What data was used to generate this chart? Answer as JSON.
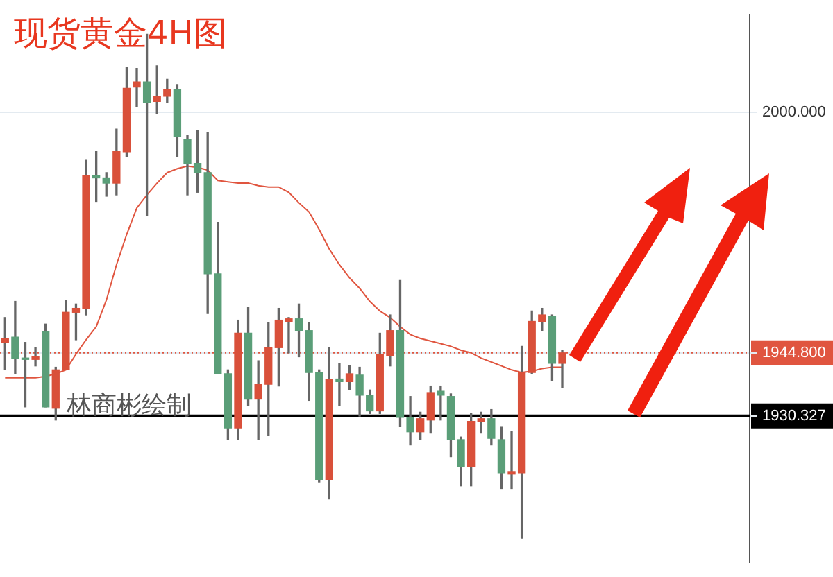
{
  "chart_data": {
    "type": "candlestick",
    "title": "现货黄金4H图",
    "annotations": [
      "林商彬绘制"
    ],
    "categories": [
      null,
      null,
      null,
      null,
      null,
      null,
      null,
      null,
      null,
      null,
      null,
      null,
      null,
      null,
      null,
      null,
      null,
      null,
      null,
      null,
      null,
      null,
      null,
      null,
      null,
      null,
      null,
      null,
      null,
      null,
      null,
      null,
      null,
      null,
      null,
      null,
      null,
      null,
      null,
      null,
      null,
      null,
      null,
      null,
      null,
      null,
      null,
      null,
      null,
      null,
      null,
      null,
      null,
      null,
      null,
      null
    ],
    "ohlc": [
      [
        1947.2,
        1952.9,
        1940.9,
        1948.1
      ],
      [
        1948.4,
        1956.6,
        1940.0,
        1943.6
      ],
      [
        1943.6,
        1947.2,
        1932.4,
        1943.3
      ],
      [
        1943.3,
        1946.0,
        1941.8,
        1943.9
      ],
      [
        1949.6,
        1951.4,
        1932.4,
        1932.4
      ],
      [
        1932.1,
        1941.5,
        1929.4,
        1940.9
      ],
      [
        1940.9,
        1956.9,
        1940.9,
        1954.1
      ],
      [
        1954.1,
        1956.0,
        1947.8,
        1955.0
      ],
      [
        1955.0,
        1989.1,
        1953.5,
        1985.5
      ],
      [
        1985.5,
        1990.9,
        1979.5,
        1984.9
      ],
      [
        1984.9,
        1986.1,
        1980.7,
        1983.7
      ],
      [
        1983.7,
        1996.1,
        1981.0,
        1990.9
      ],
      [
        1990.9,
        2010.3,
        1989.7,
        2005.4
      ],
      [
        2005.7,
        2010.0,
        2001.2,
        2006.9
      ],
      [
        2006.9,
        2017.8,
        1976.2,
        2002.1
      ],
      [
        2002.4,
        2010.6,
        1999.7,
        2003.6
      ],
      [
        2003.6,
        2007.5,
        2002.1,
        2005.1
      ],
      [
        2005.1,
        2006.3,
        1989.7,
        1994.3
      ],
      [
        1993.7,
        1994.6,
        1981.0,
        1988.2
      ],
      [
        1988.2,
        1995.8,
        1981.6,
        1986.1
      ],
      [
        1986.1,
        1995.2,
        1953.8,
        1962.9
      ],
      [
        1962.9,
        1974.7,
        1940.0,
        1940.0
      ],
      [
        1940.0,
        1940.9,
        1924.9,
        1927.6
      ],
      [
        1927.6,
        1952.3,
        1924.9,
        1949.3
      ],
      [
        1949.3,
        1955.3,
        1932.7,
        1934.2
      ],
      [
        1934.2,
        1943.0,
        1924.9,
        1937.6
      ],
      [
        1937.6,
        1951.7,
        1925.8,
        1946.0
      ],
      [
        1946.0,
        1955.0,
        1937.2,
        1952.3
      ],
      [
        1952.0,
        1952.9,
        1944.8,
        1952.6
      ],
      [
        1952.6,
        1956.0,
        1943.9,
        1949.9
      ],
      [
        1949.9,
        1951.7,
        1933.9,
        1940.3
      ],
      [
        1940.3,
        1940.9,
        1915.2,
        1915.8
      ],
      [
        1915.8,
        1946.0,
        1911.3,
        1938.8
      ],
      [
        1938.8,
        1942.4,
        1932.7,
        1938.2
      ],
      [
        1938.2,
        1941.8,
        1936.3,
        1940.0
      ],
      [
        1939.7,
        1941.5,
        1930.3,
        1935.1
      ],
      [
        1935.1,
        1936.3,
        1930.9,
        1931.5
      ],
      [
        1931.5,
        1949.3,
        1930.9,
        1944.5
      ],
      [
        1944.2,
        1953.5,
        1941.8,
        1949.9
      ],
      [
        1949.9,
        1961.4,
        1927.9,
        1930.0
      ],
      [
        1930.0,
        1934.8,
        1923.7,
        1926.7
      ],
      [
        1926.7,
        1931.2,
        1924.9,
        1929.7
      ],
      [
        1929.4,
        1937.2,
        1926.4,
        1935.7
      ],
      [
        1936.0,
        1937.2,
        1929.4,
        1935.1
      ],
      [
        1934.8,
        1935.4,
        1921.0,
        1924.9
      ],
      [
        1924.9,
        1925.5,
        1914.3,
        1918.8
      ],
      [
        1918.8,
        1930.9,
        1914.3,
        1929.1
      ],
      [
        1929.1,
        1931.2,
        1926.4,
        1929.7
      ],
      [
        1929.7,
        1931.8,
        1923.7,
        1925.2
      ],
      [
        1924.9,
        1927.9,
        1913.7,
        1917.3
      ],
      [
        1917.0,
        1926.7,
        1913.7,
        1917.6
      ],
      [
        1917.3,
        1946.3,
        1902.3,
        1940.3
      ],
      [
        1940.3,
        1954.4,
        1940.0,
        1952.0
      ],
      [
        1952.0,
        1955.0,
        1949.9,
        1953.5
      ],
      [
        1953.2,
        1953.5,
        1938.5,
        1942.4
      ],
      [
        1942.4,
        1945.4,
        1936.9,
        1944.8
      ]
    ],
    "colors": [
      "#d9503a",
      "#5a9e78",
      "#5a9e78",
      "#d9503a",
      "#5a9e78",
      "#d9503a",
      "#d9503a",
      "#d9503a",
      "#d9503a",
      "#5a9e78",
      "#5a9e78",
      "#d9503a",
      "#d9503a",
      "#d9503a",
      "#5a9e78",
      "#d9503a",
      "#d9503a",
      "#5a9e78",
      "#5a9e78",
      "#5a9e78",
      "#5a9e78",
      "#5a9e78",
      "#5a9e78",
      "#d9503a",
      "#5a9e78",
      "#d9503a",
      "#d9503a",
      "#d9503a",
      "#d9503a",
      "#5a9e78",
      "#5a9e78",
      "#5a9e78",
      "#d9503a",
      "#5a9e78",
      "#d9503a",
      "#5a9e78",
      "#5a9e78",
      "#d9503a",
      "#d9503a",
      "#5a9e78",
      "#5a9e78",
      "#d9503a",
      "#d9503a",
      "#5a9e78",
      "#5a9e78",
      "#5a9e78",
      "#d9503a",
      "#d9503a",
      "#5a9e78",
      "#5a9e78",
      "#d9503a",
      "#d9503a",
      "#d9503a",
      "#d9503a",
      "#5a9e78",
      "#d9503a"
    ],
    "series": [
      {
        "type": "line",
        "color": "#e0553f",
        "values": [
          1939.1,
          1939.1,
          1939.1,
          1939.1,
          1939.4,
          1940.0,
          1940.9,
          1944.5,
          1947.8,
          1950.8,
          1956.9,
          1965.0,
          1971.9,
          1978.0,
          1981.0,
          1983.7,
          1986.1,
          1987.0,
          1987.6,
          1987.3,
          1986.7,
          1984.3,
          1984.0,
          1983.7,
          1983.7,
          1983.1,
          1982.8,
          1982.8,
          1981.6,
          1979.2,
          1977.1,
          1973.1,
          1968.6,
          1965.0,
          1962.0,
          1959.6,
          1956.6,
          1954.4,
          1952.9,
          1950.8,
          1949.0,
          1948.1,
          1947.5,
          1946.9,
          1946.3,
          1945.4,
          1944.8,
          1943.6,
          1942.7,
          1941.8,
          1940.9,
          1940.3,
          1940.6,
          1941.2,
          1941.5,
          1941.5
        ]
      }
    ],
    "ylim": [
      1896.8,
      2022.3
    ],
    "yticks": [
      {
        "value": 1930.327,
        "label": "1930.327"
      },
      {
        "value": 1944.8,
        "label": "1944.800"
      },
      {
        "value": 2000,
        "label": "2000.000"
      }
    ],
    "ref_lines": [
      {
        "axis": "y",
        "value": 1944.8,
        "color": "#e0553f",
        "line_style": "dotted"
      },
      {
        "axis": "y",
        "value": 1930.327,
        "color": "#000000",
        "line_style": "solid"
      }
    ],
    "grid": "y",
    "legend": false
  }
}
